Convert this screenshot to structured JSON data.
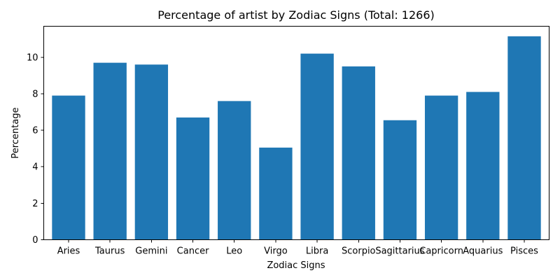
{
  "chart_data": {
    "type": "bar",
    "title": "Percentage of artist by Zodiac Signs (Total: 1266)",
    "xlabel": "Zodiac Signs",
    "ylabel": "Percentage",
    "categories": [
      "Aries",
      "Taurus",
      "Gemini",
      "Cancer",
      "Leo",
      "Virgo",
      "Libra",
      "Scorpio",
      "Sagittarius",
      "Capricorn",
      "Aquarius",
      "Pisces"
    ],
    "values": [
      7.9,
      9.7,
      9.6,
      6.7,
      7.6,
      5.05,
      10.2,
      9.5,
      6.55,
      7.9,
      8.1,
      11.15
    ],
    "yticks": [
      0,
      2,
      4,
      6,
      8,
      10
    ],
    "ylim": [
      0,
      11.7
    ],
    "grid": false,
    "bar_color": "#1f77b4"
  }
}
